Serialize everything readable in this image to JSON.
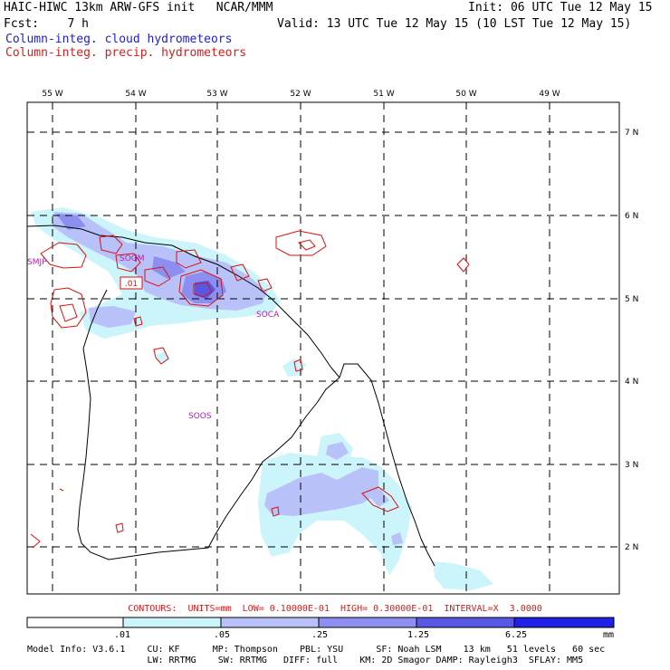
{
  "header": {
    "line1_left": "HAIC-HIWC 13km ARW-GFS init   NCAR/MMM",
    "line1_right": "Init: 06 UTC Tue 12 May 15",
    "line2_left": "Fcst:    7 h",
    "line2_right": "Valid: 13 UTC Tue 12 May 15 (10 LST Tue 12 May 15)",
    "field1": "Column-integ. cloud hydrometeors",
    "field2": "Column-integ. precip. hydrometeors"
  },
  "map": {
    "lon_labels": [
      "55 W",
      "54 W",
      "53 W",
      "52 W",
      "51 W",
      "50 W",
      "49 W"
    ],
    "lat_labels": [
      "7 N",
      "6 N",
      "5 N",
      "4 N",
      "3 N",
      "2 N"
    ],
    "stations": [
      "SMJP",
      "SOGM",
      "SOCA",
      "SOOS"
    ],
    "contour_label": ".01"
  },
  "contours_line": "CONTOURS:  UNITS=mm  LOW= 0.10000E-01  HIGH= 0.30000E-01  INTERVAL=X  3.0000",
  "colorbar": {
    "labels": [
      ".01",
      ".05",
      ".25",
      "1.25",
      "6.25"
    ],
    "unit": "mm",
    "colors": [
      "#ffffff",
      "#ccf4fb",
      "#b8c2f8",
      "#8c8ff0",
      "#5858e4",
      "#2020e6"
    ]
  },
  "model_info": {
    "line1": "Model Info: V3.6.1    CU: KF      MP: Thompson    PBL: YSU      SF: Noah LSM    13 km   51 levels   60 sec",
    "line2": "                      LW: RRTMG    SW: RRTMG   DIFF: full    KM: 2D Smagor DAMP: Rayleigh3  SFLAY: MM5"
  }
}
